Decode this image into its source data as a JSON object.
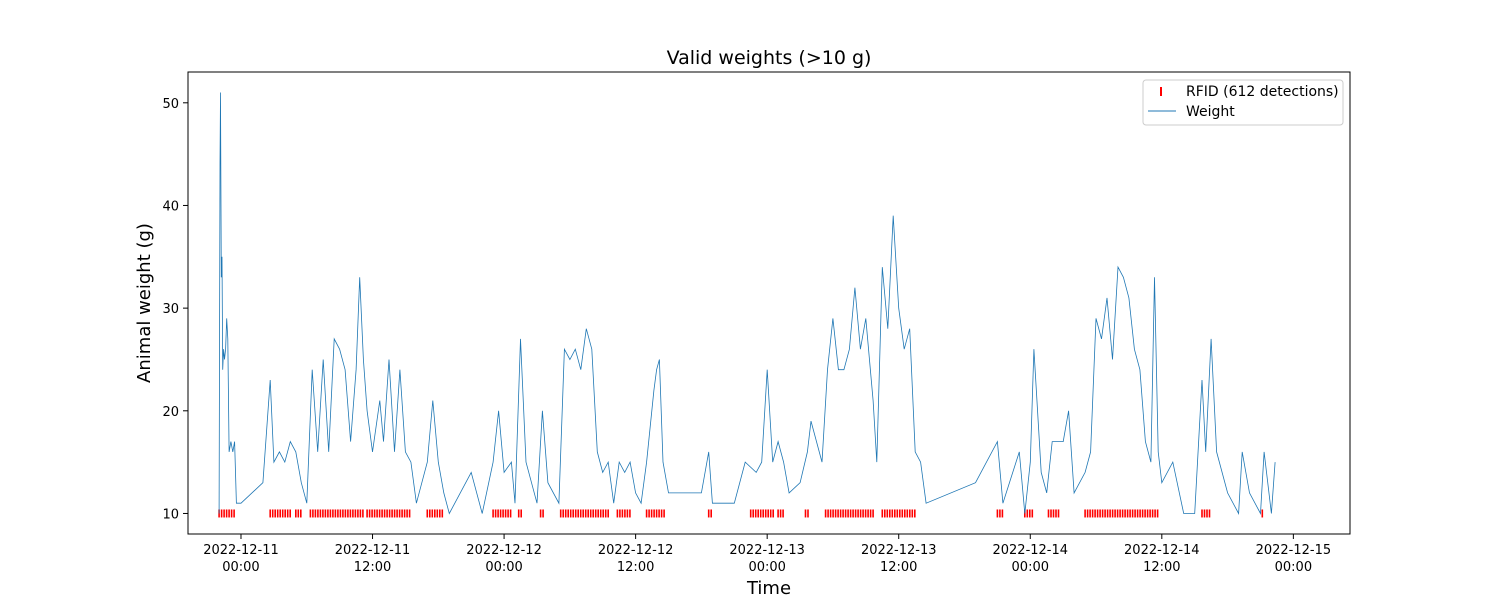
{
  "chart_data": {
    "type": "line",
    "title": "Valid weights (>10 g)",
    "xlabel": "Time",
    "ylabel": "Animal weight (g)",
    "xlim": [
      "2022-12-10 19:10",
      "2022-12-15 05:10"
    ],
    "ylim": [
      8,
      53
    ],
    "x_ticks": [
      {
        "date": "2022-12-11",
        "time": "00:00",
        "x": "2022-12-11 00:00"
      },
      {
        "date": "2022-12-11",
        "time": "12:00",
        "x": "2022-12-11 12:00"
      },
      {
        "date": "2022-12-12",
        "time": "00:00",
        "x": "2022-12-12 00:00"
      },
      {
        "date": "2022-12-12",
        "time": "12:00",
        "x": "2022-12-12 12:00"
      },
      {
        "date": "2022-12-13",
        "time": "00:00",
        "x": "2022-12-13 00:00"
      },
      {
        "date": "2022-12-13",
        "time": "12:00",
        "x": "2022-12-13 12:00"
      },
      {
        "date": "2022-12-14",
        "time": "00:00",
        "x": "2022-12-14 00:00"
      },
      {
        "date": "2022-12-14",
        "time": "12:00",
        "x": "2022-12-14 12:00"
      },
      {
        "date": "2022-12-15",
        "time": "00:00",
        "x": "2022-12-15 00:00"
      }
    ],
    "y_ticks": [
      10,
      20,
      30,
      40,
      50
    ],
    "grid": false,
    "legend": {
      "placement": "top-right",
      "entries": [
        "RFID (612 detections)",
        "Weight"
      ]
    },
    "series": [
      {
        "name": "Weight",
        "color": "#1f77b4",
        "points": [
          [
            "2022-12-10 22:00",
            10
          ],
          [
            "2022-12-10 22:05",
            44
          ],
          [
            "2022-12-10 22:08",
            51
          ],
          [
            "2022-12-10 22:12",
            33
          ],
          [
            "2022-12-10 22:16",
            35
          ],
          [
            "2022-12-10 22:20",
            24
          ],
          [
            "2022-12-10 22:25",
            26
          ],
          [
            "2022-12-10 22:30",
            25
          ],
          [
            "2022-12-10 22:36",
            26
          ],
          [
            "2022-12-10 22:42",
            29
          ],
          [
            "2022-12-10 22:48",
            27
          ],
          [
            "2022-12-10 22:55",
            16
          ],
          [
            "2022-12-10 23:05",
            17
          ],
          [
            "2022-12-10 23:15",
            16
          ],
          [
            "2022-12-10 23:25",
            17
          ],
          [
            "2022-12-10 23:35",
            11
          ],
          [
            "2022-12-11 00:00",
            11
          ],
          [
            "2022-12-11 02:00",
            13
          ],
          [
            "2022-12-11 02:40",
            23
          ],
          [
            "2022-12-11 03:00",
            15
          ],
          [
            "2022-12-11 03:30",
            16
          ],
          [
            "2022-12-11 04:00",
            15
          ],
          [
            "2022-12-11 04:30",
            17
          ],
          [
            "2022-12-11 05:00",
            16
          ],
          [
            "2022-12-11 05:30",
            13
          ],
          [
            "2022-12-11 06:00",
            11
          ],
          [
            "2022-12-11 06:30",
            24
          ],
          [
            "2022-12-11 07:00",
            16
          ],
          [
            "2022-12-11 07:30",
            25
          ],
          [
            "2022-12-11 08:00",
            16
          ],
          [
            "2022-12-11 08:30",
            27
          ],
          [
            "2022-12-11 09:00",
            26
          ],
          [
            "2022-12-11 09:30",
            24
          ],
          [
            "2022-12-11 10:00",
            17
          ],
          [
            "2022-12-11 10:30",
            24
          ],
          [
            "2022-12-11 10:50",
            33
          ],
          [
            "2022-12-11 11:10",
            25
          ],
          [
            "2022-12-11 11:30",
            20
          ],
          [
            "2022-12-11 12:00",
            16
          ],
          [
            "2022-12-11 12:40",
            21
          ],
          [
            "2022-12-11 13:00",
            17
          ],
          [
            "2022-12-11 13:30",
            25
          ],
          [
            "2022-12-11 14:00",
            16
          ],
          [
            "2022-12-11 14:30",
            24
          ],
          [
            "2022-12-11 15:00",
            16
          ],
          [
            "2022-12-11 15:30",
            15
          ],
          [
            "2022-12-11 16:00",
            11
          ],
          [
            "2022-12-11 17:00",
            15
          ],
          [
            "2022-12-11 17:30",
            21
          ],
          [
            "2022-12-11 18:00",
            15
          ],
          [
            "2022-12-11 18:30",
            12
          ],
          [
            "2022-12-11 19:00",
            10
          ],
          [
            "2022-12-11 21:00",
            14
          ],
          [
            "2022-12-11 22:00",
            10
          ],
          [
            "2022-12-11 23:00",
            15
          ],
          [
            "2022-12-11 23:30",
            20
          ],
          [
            "2022-12-12 00:00",
            14
          ],
          [
            "2022-12-12 00:40",
            15
          ],
          [
            "2022-12-12 01:00",
            11
          ],
          [
            "2022-12-12 01:30",
            27
          ],
          [
            "2022-12-12 02:00",
            15
          ],
          [
            "2022-12-12 03:00",
            11
          ],
          [
            "2022-12-12 03:30",
            20
          ],
          [
            "2022-12-12 04:00",
            13
          ],
          [
            "2022-12-12 05:00",
            11
          ],
          [
            "2022-12-12 05:30",
            26
          ],
          [
            "2022-12-12 06:00",
            25
          ],
          [
            "2022-12-12 06:30",
            26
          ],
          [
            "2022-12-12 07:00",
            24
          ],
          [
            "2022-12-12 07:30",
            28
          ],
          [
            "2022-12-12 08:00",
            26
          ],
          [
            "2022-12-12 08:30",
            16
          ],
          [
            "2022-12-12 09:00",
            14
          ],
          [
            "2022-12-12 09:30",
            15
          ],
          [
            "2022-12-12 10:00",
            11
          ],
          [
            "2022-12-12 10:30",
            15
          ],
          [
            "2022-12-12 11:00",
            14
          ],
          [
            "2022-12-12 11:30",
            15
          ],
          [
            "2022-12-12 12:00",
            12
          ],
          [
            "2022-12-12 12:30",
            11
          ],
          [
            "2022-12-12 13:00",
            15
          ],
          [
            "2022-12-12 13:40",
            22
          ],
          [
            "2022-12-12 13:55",
            24
          ],
          [
            "2022-12-12 14:10",
            25
          ],
          [
            "2022-12-12 14:30",
            15
          ],
          [
            "2022-12-12 15:00",
            12
          ],
          [
            "2022-12-12 18:00",
            12
          ],
          [
            "2022-12-12 18:40",
            16
          ],
          [
            "2022-12-12 19:00",
            11
          ],
          [
            "2022-12-12 21:00",
            11
          ],
          [
            "2022-12-12 22:00",
            15
          ],
          [
            "2022-12-12 23:00",
            14
          ],
          [
            "2022-12-12 23:30",
            15
          ],
          [
            "2022-12-13 00:00",
            24
          ],
          [
            "2022-12-13 00:30",
            15
          ],
          [
            "2022-12-13 01:00",
            17
          ],
          [
            "2022-12-13 01:30",
            15
          ],
          [
            "2022-12-13 02:00",
            12
          ],
          [
            "2022-12-13 03:00",
            13
          ],
          [
            "2022-12-13 03:40",
            16
          ],
          [
            "2022-12-13 04:00",
            19
          ],
          [
            "2022-12-13 05:00",
            15
          ],
          [
            "2022-12-13 05:30",
            24
          ],
          [
            "2022-12-13 06:00",
            29
          ],
          [
            "2022-12-13 06:30",
            24
          ],
          [
            "2022-12-13 07:00",
            24
          ],
          [
            "2022-12-13 07:30",
            26
          ],
          [
            "2022-12-13 08:00",
            32
          ],
          [
            "2022-12-13 08:30",
            26
          ],
          [
            "2022-12-13 09:00",
            29
          ],
          [
            "2022-12-13 09:40",
            21
          ],
          [
            "2022-12-13 10:00",
            15
          ],
          [
            "2022-12-13 10:30",
            34
          ],
          [
            "2022-12-13 11:00",
            28
          ],
          [
            "2022-12-13 11:30",
            39
          ],
          [
            "2022-12-13 12:00",
            30
          ],
          [
            "2022-12-13 12:30",
            26
          ],
          [
            "2022-12-13 13:00",
            28
          ],
          [
            "2022-12-13 13:30",
            16
          ],
          [
            "2022-12-13 14:00",
            15
          ],
          [
            "2022-12-13 14:30",
            11
          ],
          [
            "2022-12-13 19:00",
            13
          ],
          [
            "2022-12-13 21:00",
            17
          ],
          [
            "2022-12-13 21:30",
            11
          ],
          [
            "2022-12-13 23:00",
            16
          ],
          [
            "2022-12-13 23:30",
            10
          ],
          [
            "2022-12-14 00:00",
            15
          ],
          [
            "2022-12-14 00:20",
            26
          ],
          [
            "2022-12-14 01:00",
            14
          ],
          [
            "2022-12-14 01:30",
            12
          ],
          [
            "2022-12-14 02:00",
            17
          ],
          [
            "2022-12-14 03:00",
            17
          ],
          [
            "2022-12-14 03:30",
            20
          ],
          [
            "2022-12-14 04:00",
            12
          ],
          [
            "2022-12-14 05:00",
            14
          ],
          [
            "2022-12-14 05:30",
            16
          ],
          [
            "2022-12-14 06:00",
            29
          ],
          [
            "2022-12-14 06:30",
            27
          ],
          [
            "2022-12-14 07:00",
            31
          ],
          [
            "2022-12-14 07:30",
            25
          ],
          [
            "2022-12-14 08:00",
            34
          ],
          [
            "2022-12-14 08:30",
            33
          ],
          [
            "2022-12-14 09:00",
            31
          ],
          [
            "2022-12-14 09:30",
            26
          ],
          [
            "2022-12-14 10:00",
            24
          ],
          [
            "2022-12-14 10:30",
            17
          ],
          [
            "2022-12-14 11:00",
            15
          ],
          [
            "2022-12-14 11:20",
            33
          ],
          [
            "2022-12-14 11:40",
            16
          ],
          [
            "2022-12-14 12:00",
            13
          ],
          [
            "2022-12-14 13:00",
            15
          ],
          [
            "2022-12-14 14:00",
            10
          ],
          [
            "2022-12-14 15:00",
            10
          ],
          [
            "2022-12-14 15:40",
            23
          ],
          [
            "2022-12-14 16:00",
            16
          ],
          [
            "2022-12-14 16:30",
            27
          ],
          [
            "2022-12-14 17:00",
            16
          ],
          [
            "2022-12-14 18:00",
            12
          ],
          [
            "2022-12-14 19:00",
            10
          ],
          [
            "2022-12-14 19:20",
            16
          ],
          [
            "2022-12-14 20:00",
            12
          ],
          [
            "2022-12-14 21:00",
            10
          ],
          [
            "2022-12-14 21:20",
            16
          ],
          [
            "2022-12-14 22:00",
            10
          ],
          [
            "2022-12-14 22:20",
            15
          ]
        ]
      },
      {
        "name": "RFID (612 detections)",
        "color": "#ff0000",
        "marker": "|",
        "y": 10,
        "detection_intervals": [
          [
            "2022-12-10 22:00",
            "2022-12-10 23:35"
          ],
          [
            "2022-12-11 02:40",
            "2022-12-11 04:30"
          ],
          [
            "2022-12-11 05:00",
            "2022-12-11 05:30"
          ],
          [
            "2022-12-11 06:20",
            "2022-12-11 11:10"
          ],
          [
            "2022-12-11 11:30",
            "2022-12-11 15:30"
          ],
          [
            "2022-12-11 17:00",
            "2022-12-11 18:30"
          ],
          [
            "2022-12-11 23:00",
            "2022-12-12 00:40"
          ],
          [
            "2022-12-12 01:20",
            "2022-12-12 01:45"
          ],
          [
            "2022-12-12 03:20",
            "2022-12-12 03:40"
          ],
          [
            "2022-12-12 05:10",
            "2022-12-12 09:40"
          ],
          [
            "2022-12-12 10:20",
            "2022-12-12 11:40"
          ],
          [
            "2022-12-12 13:00",
            "2022-12-12 14:40"
          ],
          [
            "2022-12-12 18:40",
            "2022-12-12 18:55"
          ],
          [
            "2022-12-12 22:30",
            "2022-12-13 00:40"
          ],
          [
            "2022-12-13 01:00",
            "2022-12-13 01:40"
          ],
          [
            "2022-12-13 03:30",
            "2022-12-13 03:50"
          ],
          [
            "2022-12-13 05:20",
            "2022-12-13 09:50"
          ],
          [
            "2022-12-13 10:30",
            "2022-12-13 13:30"
          ],
          [
            "2022-12-13 21:00",
            "2022-12-13 21:30"
          ],
          [
            "2022-12-13 23:30",
            "2022-12-14 00:20"
          ],
          [
            "2022-12-14 01:40",
            "2022-12-14 02:40"
          ],
          [
            "2022-12-14 05:00",
            "2022-12-14 11:40"
          ],
          [
            "2022-12-14 15:40",
            "2022-12-14 16:30"
          ],
          [
            "2022-12-14 21:10",
            "2022-12-14 21:20"
          ]
        ]
      }
    ]
  }
}
